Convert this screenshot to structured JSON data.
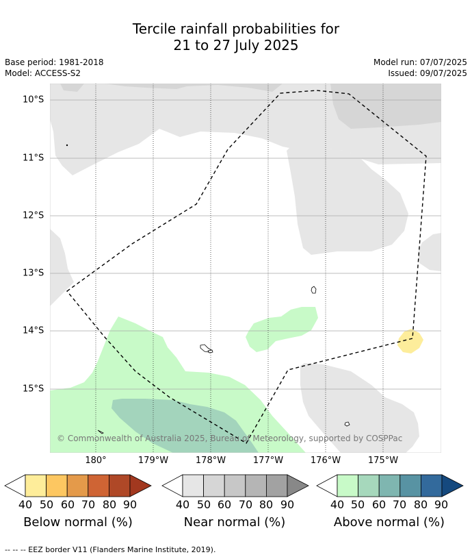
{
  "title": {
    "line1": "Tercile rainfall probabilities for",
    "line2": "21 to 27 July 2025"
  },
  "info": {
    "base_period": "Base period: 1981-2018",
    "model": "Model: ACCESS-S2",
    "model_run": "Model run: 07/07/2025",
    "issued": "Issued: 09/07/2025"
  },
  "map": {
    "latitude_labels": [
      "10°S",
      "11°S",
      "12°S",
      "13°S",
      "14°S",
      "15°S"
    ],
    "longitude_labels": [
      "180°",
      "179°W",
      "178°W",
      "177°W",
      "176°W",
      "175°W"
    ],
    "copyright": "© Commonwealth of Australia 2025, Bureau of Meteorology, supported by COSPPac",
    "colors": {
      "near_normal_40": "#e6e6e6",
      "near_normal_50": "#d6d6d6",
      "above_normal_40": "#c8fac8",
      "above_normal_50": "#a3d4bc",
      "below_normal_40": "#fded9b",
      "eez_border": "#000000"
    }
  },
  "legend": {
    "tick_labels": [
      "40",
      "50",
      "60",
      "70",
      "80",
      "90"
    ],
    "groups": [
      {
        "title": "Below normal (%)",
        "colors": [
          "#feed9a",
          "#fdc761",
          "#e49a4a",
          "#cf6434",
          "#af4827",
          "#a2381f"
        ]
      },
      {
        "title": "Near normal (%)",
        "colors": [
          "#e6e6e6",
          "#d6d6d6",
          "#c7c7c7",
          "#b5b5b5",
          "#a2a2a2",
          "#888888"
        ]
      },
      {
        "title": "Above normal (%)",
        "colors": [
          "#c8fac8",
          "#a6d8bc",
          "#7fb6b0",
          "#5893a3",
          "#336a9c",
          "#15497e"
        ]
      }
    ]
  },
  "footnote": "--  --  -- EEZ border V11 (Flanders Marine Institute, 2019)."
}
